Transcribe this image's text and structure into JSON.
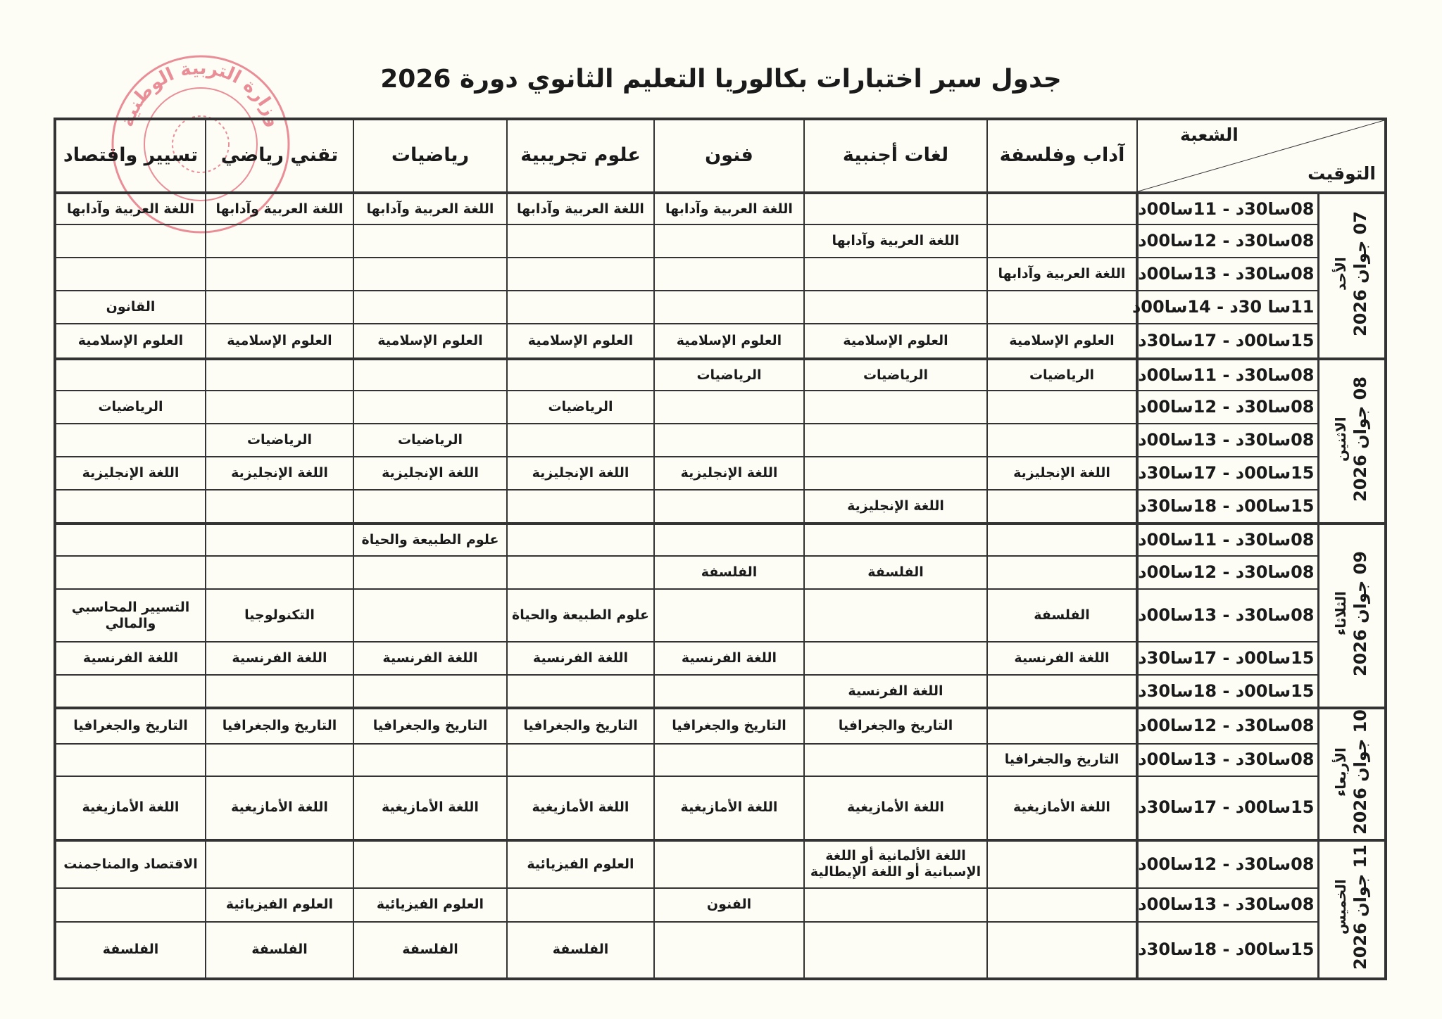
{
  "title": "جدول سير اختبارات بكالوريا التعليم الثانوي دورة 2026",
  "stamp": {
    "text": "وزارة التربية الوطنية",
    "color": "#d9354b"
  },
  "header": {
    "corner_top": "الشعبة",
    "corner_bottom": "التوقيت",
    "streams": [
      "آداب وفلسفة",
      "لغات أجنبية",
      "فنون",
      "علوم تجريبية",
      "رياضيات",
      "تقني رياضي",
      "تسيير واقتصاد"
    ]
  },
  "days": [
    {
      "date": "07 جوان 2026",
      "name": "الأحد",
      "slots": [
        {
          "time": "08سا30د - 11سا00د",
          "cells": [
            "",
            "",
            "اللغة العربية وآدابها",
            "اللغة العربية وآدابها",
            "اللغة العربية وآدابها",
            "اللغة العربية وآدابها",
            "اللغة العربية وآدابها"
          ]
        },
        {
          "time": "08سا30د - 12سا00د",
          "cells": [
            "",
            "اللغة العربية وآدابها",
            "",
            "",
            "",
            "",
            ""
          ]
        },
        {
          "time": "08سا30د - 13سا00د",
          "cells": [
            "اللغة العربية وآدابها",
            "",
            "",
            "",
            "",
            "",
            ""
          ]
        },
        {
          "time": "11سا 30د - 14سا00د",
          "cells": [
            "",
            "",
            "",
            "",
            "",
            "",
            "القانون"
          ]
        },
        {
          "time": "15سا00د - 17سا30د",
          "cells": [
            "العلوم الإسلامية",
            "العلوم الإسلامية",
            "العلوم الإسلامية",
            "العلوم الإسلامية",
            "العلوم الإسلامية",
            "العلوم الإسلامية",
            "العلوم الإسلامية"
          ]
        }
      ]
    },
    {
      "date": "08 جوان 2026",
      "name": "الاثنين",
      "slots": [
        {
          "time": "08سا30د - 11سا00د",
          "cells": [
            "الرياضيات",
            "الرياضيات",
            "الرياضيات",
            "",
            "",
            "",
            ""
          ]
        },
        {
          "time": "08سا30د - 12سا00د",
          "cells": [
            "",
            "",
            "",
            "الرياضيات",
            "",
            "",
            "الرياضيات"
          ]
        },
        {
          "time": "08سا30د - 13سا00د",
          "cells": [
            "",
            "",
            "",
            "",
            "الرياضيات",
            "الرياضيات",
            ""
          ]
        },
        {
          "time": "15سا00د - 17سا30د",
          "cells": [
            "اللغة الإنجليزية",
            "",
            "اللغة الإنجليزية",
            "اللغة الإنجليزية",
            "اللغة الإنجليزية",
            "اللغة الإنجليزية",
            "اللغة الإنجليزية"
          ]
        },
        {
          "time": "15سا00د - 18سا30د",
          "cells": [
            "",
            "اللغة الإنجليزية",
            "",
            "",
            "",
            "",
            ""
          ]
        }
      ]
    },
    {
      "date": "09 جوان 2026",
      "name": "الثلاثاء",
      "slots": [
        {
          "time": "08سا30د - 11سا00د",
          "cells": [
            "",
            "",
            "",
            "",
            "علوم الطبيعة والحياة",
            "",
            ""
          ]
        },
        {
          "time": "08سا30د - 12سا00د",
          "cells": [
            "",
            "الفلسفة",
            "الفلسفة",
            "",
            "",
            "",
            ""
          ]
        },
        {
          "time": "08سا30د - 13سا00د",
          "cells": [
            "الفلسفة",
            "",
            "",
            "علوم الطبيعة والحياة",
            "",
            "التكنولوجيا",
            "التسيير المحاسبي والمالي"
          ]
        },
        {
          "time": "15سا00د - 17سا30د",
          "cells": [
            "اللغة الفرنسية",
            "",
            "اللغة الفرنسية",
            "اللغة الفرنسية",
            "اللغة الفرنسية",
            "اللغة الفرنسية",
            "اللغة الفرنسية"
          ]
        },
        {
          "time": "15سا00د - 18سا30د",
          "cells": [
            "",
            "اللغة الفرنسية",
            "",
            "",
            "",
            "",
            ""
          ]
        }
      ]
    },
    {
      "date": "10 جوان 2026",
      "name": "الأربعاء",
      "slots": [
        {
          "time": "08سا30د - 12سا00د",
          "cells": [
            "",
            "التاريخ والجغرافيا",
            "التاريخ والجغرافيا",
            "التاريخ والجغرافيا",
            "التاريخ والجغرافيا",
            "التاريخ والجغرافيا",
            "التاريخ والجغرافيا"
          ]
        },
        {
          "time": "08سا30د - 13سا00د",
          "cells": [
            "التاريخ والجغرافيا",
            "",
            "",
            "",
            "",
            "",
            ""
          ]
        },
        {
          "time": "15سا00د - 17سا30د",
          "cells": [
            "اللغة الأمازيغية",
            "اللغة الأمازيغية",
            "اللغة الأمازيغية",
            "اللغة الأمازيغية",
            "اللغة الأمازيغية",
            "اللغة الأمازيغية",
            "اللغة الأمازيغية"
          ]
        }
      ]
    },
    {
      "date": "11 جوان 2026",
      "name": "الخميس",
      "slots": [
        {
          "time": "08سا30د - 12سا00د",
          "cells": [
            "",
            "اللغة الألمانية أو اللغة الإسبانية أو اللغة الإيطالية",
            "",
            "العلوم الفيزيائية",
            "",
            "",
            "الاقتصاد والمناجمنت"
          ]
        },
        {
          "time": "08سا30د - 13سا00د",
          "cells": [
            "",
            "",
            "الفنون",
            "",
            "العلوم الفيزيائية",
            "العلوم الفيزيائية",
            ""
          ]
        },
        {
          "time": "15سا00د - 18سا30د",
          "cells": [
            "",
            "",
            "",
            "الفلسفة",
            "الفلسفة",
            "الفلسفة",
            "الفلسفة"
          ]
        }
      ]
    }
  ]
}
